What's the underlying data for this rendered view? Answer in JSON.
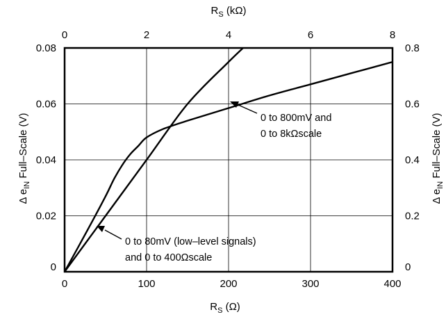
{
  "chart_data": {
    "type": "line",
    "x_bottom": {
      "label_main": "R",
      "label_sub": "S",
      "label_unit": " (Ω)",
      "range": [
        0,
        400
      ],
      "ticks": [
        "0",
        "100",
        "200",
        "300",
        "400"
      ]
    },
    "x_top": {
      "label_main": "R",
      "label_sub": "S",
      "label_unit": " (kΩ)",
      "range": [
        0,
        8
      ],
      "ticks": [
        "0",
        "2",
        "4",
        "6",
        "8"
      ]
    },
    "y_left": {
      "label_prefix": "Δ e",
      "label_sub": "IN",
      "label_suffix": " Full–Scale (V)",
      "range": [
        0,
        0.08
      ],
      "ticks": [
        "0",
        "0.02",
        "0.04",
        "0.06",
        "0.08"
      ]
    },
    "y_right": {
      "label_prefix": "Δ e",
      "label_sub": "IN",
      "label_suffix": " Full–Scale (V)",
      "range": [
        0,
        0.8
      ],
      "ticks": [
        "0",
        "0.2",
        "0.4",
        "0.6",
        "0.8"
      ]
    },
    "grid": true,
    "series": [
      {
        "axes": "bottom-left",
        "x": [
          0,
          50,
          100,
          150,
          200,
          225
        ],
        "y": [
          0,
          0.02,
          0.04,
          0.06,
          0.075,
          0.082
        ]
      },
      {
        "axes": "top-right",
        "x": [
          0,
          0.6,
          1.0,
          1.2,
          1.4,
          1.6,
          1.8,
          2.0,
          2.4,
          3.0,
          4.0,
          5.0,
          6.0,
          7.0,
          8.0
        ],
        "y": [
          0,
          0.16,
          0.27,
          0.33,
          0.38,
          0.42,
          0.45,
          0.48,
          0.51,
          0.54,
          0.585,
          0.63,
          0.67,
          0.71,
          0.75
        ]
      }
    ],
    "annotations": [
      {
        "lines": [
          "0 to 800mV and",
          "0 to 8kΩscale"
        ]
      },
      {
        "lines": [
          "0 to 80mV (low–level signals)",
          "and 0 to 400Ωscale"
        ]
      }
    ]
  }
}
